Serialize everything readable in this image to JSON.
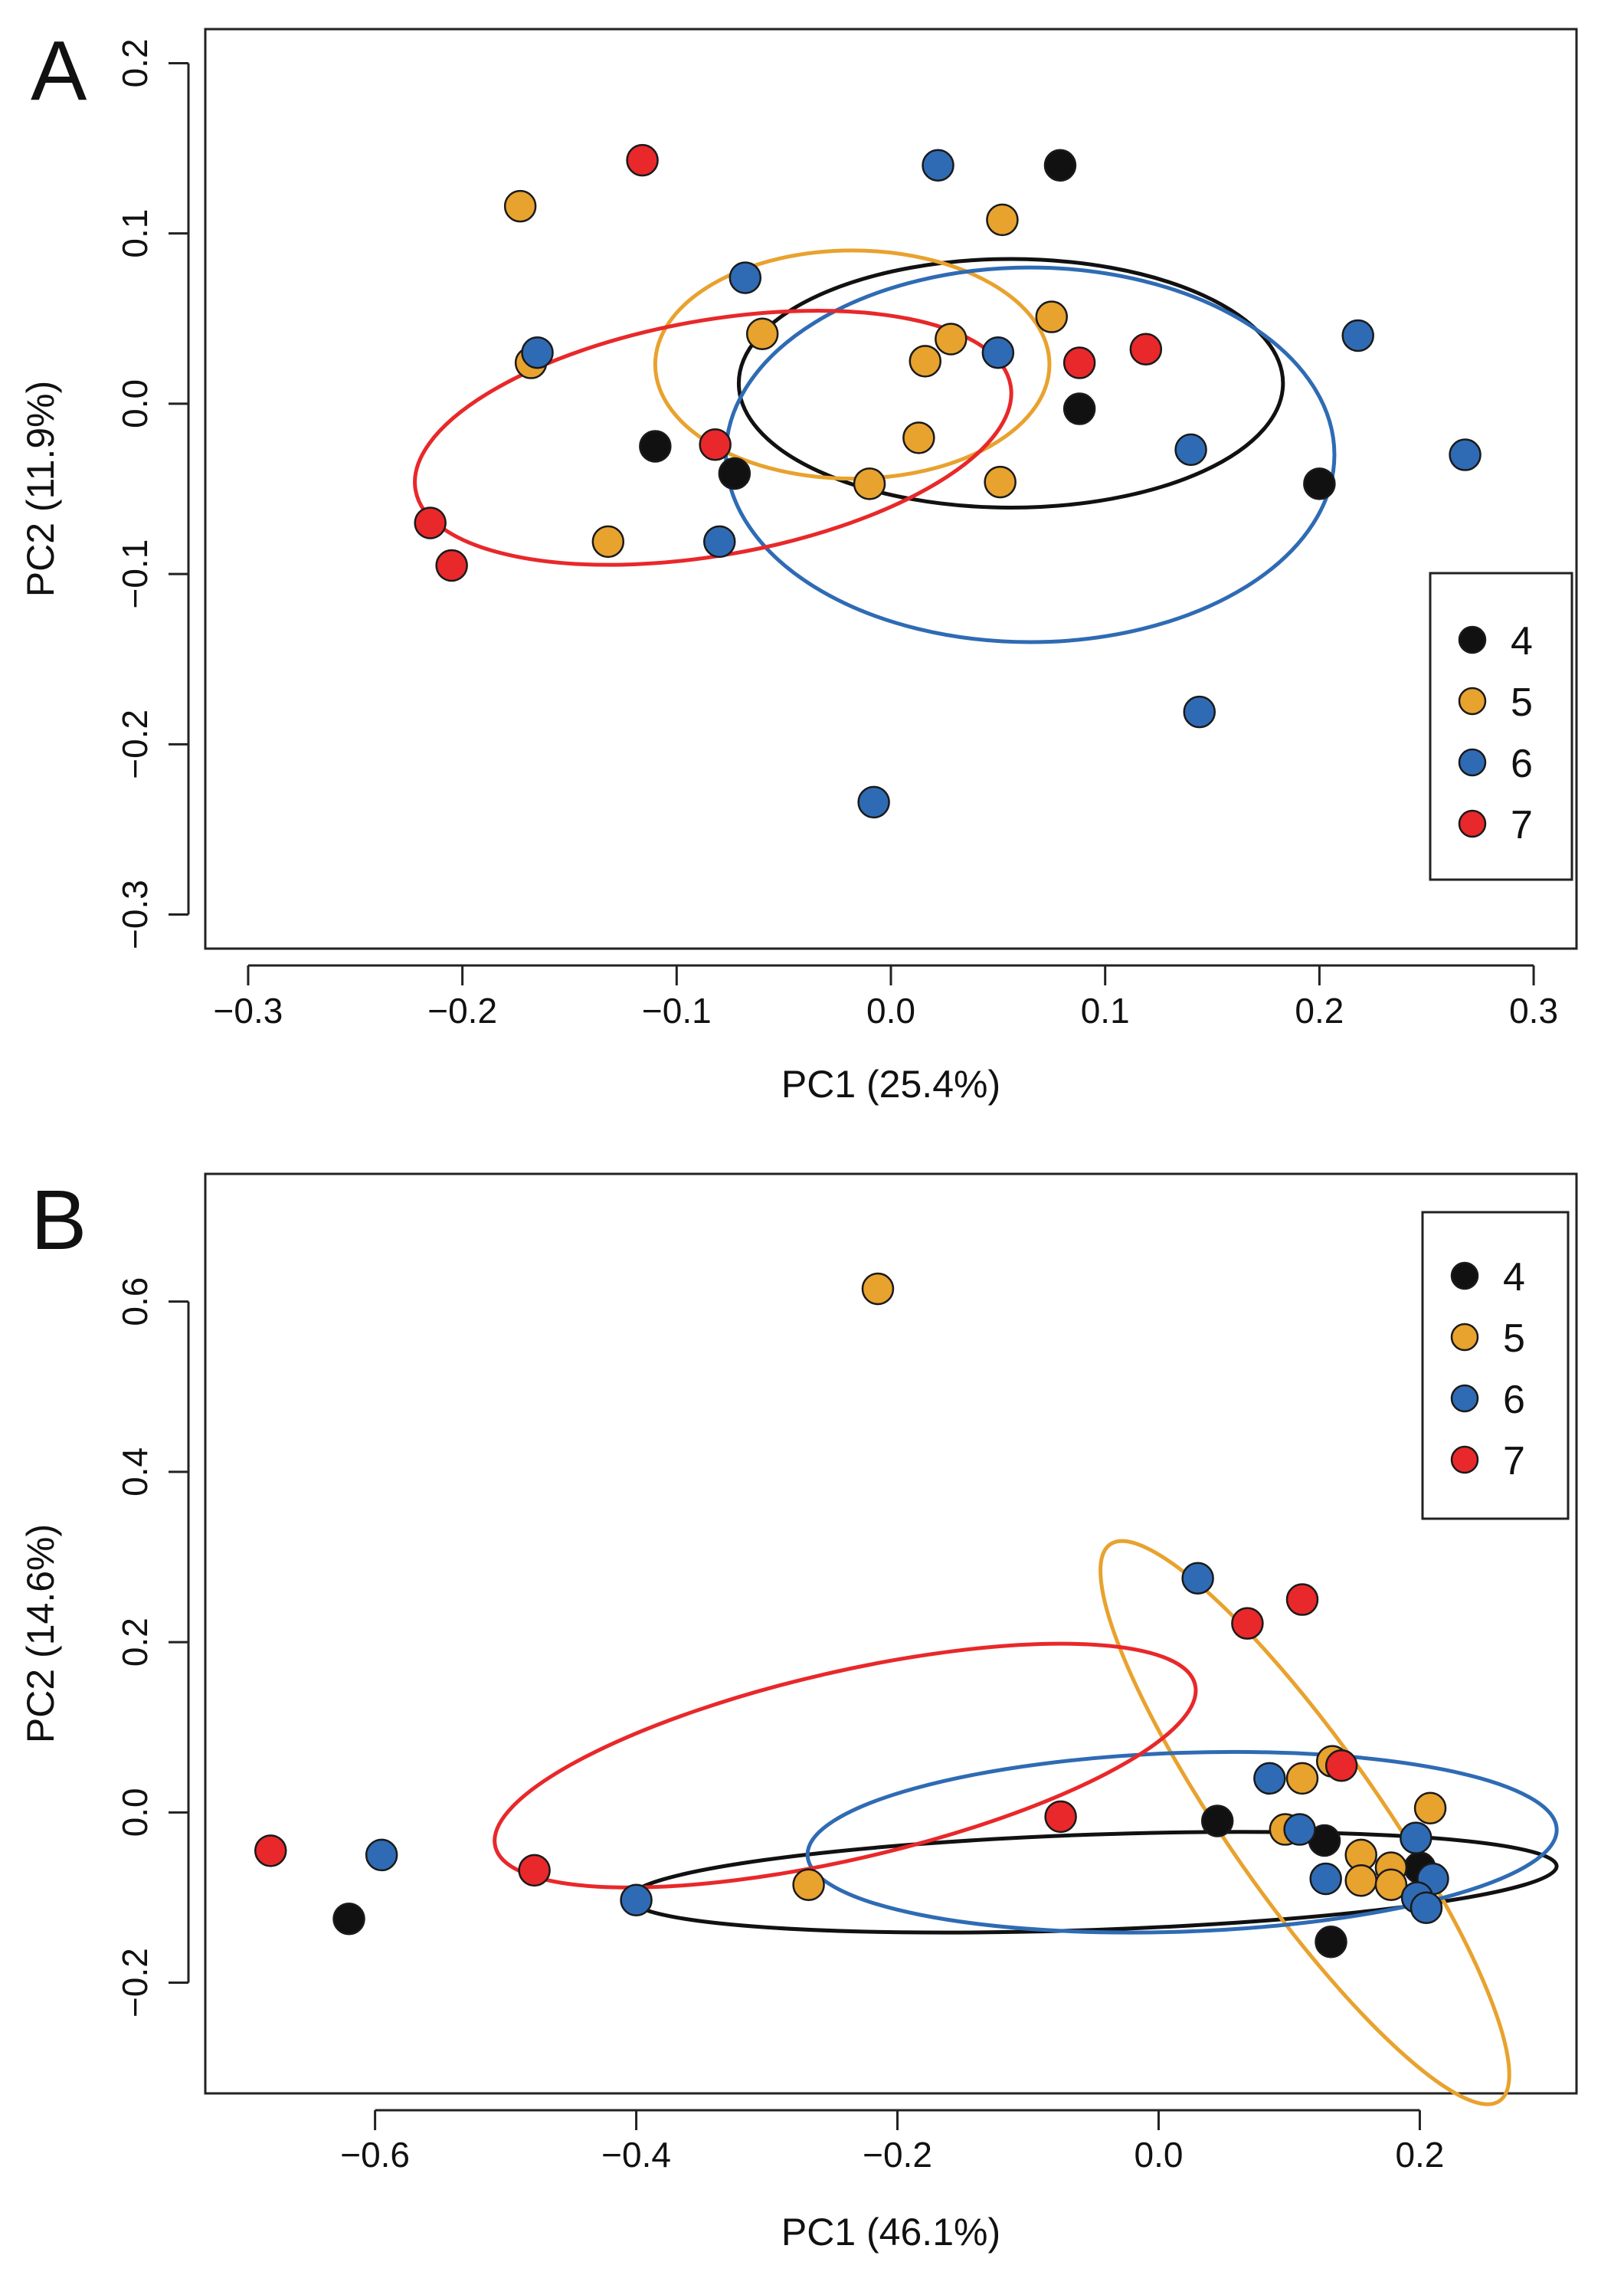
{
  "chart_data": [
    {
      "panel": "A",
      "type": "scatter",
      "xlabel": "PC1 (25.4%)",
      "ylabel": "PC2 (11.9%)",
      "xlim": [
        -0.32,
        0.32
      ],
      "ylim": [
        -0.32,
        0.22
      ],
      "xticks": [
        -0.3,
        -0.2,
        -0.1,
        0.0,
        0.1,
        0.2,
        0.3
      ],
      "yticks": [
        -0.3,
        -0.2,
        -0.1,
        0.0,
        0.1,
        0.2
      ],
      "xtick_labels": [
        "−0.3",
        "−0.2",
        "−0.1",
        "0.0",
        "0.1",
        "0.2",
        "0.3"
      ],
      "ytick_labels": [
        "−0.3",
        "−0.2",
        "−0.1",
        "0.0",
        "0.1",
        "0.2"
      ],
      "legend_position": "right",
      "series": [
        {
          "name": "4",
          "color": "#111111",
          "points": [
            [
              0.079,
              0.14
            ],
            [
              -0.11,
              -0.025
            ],
            [
              -0.073,
              -0.041
            ],
            [
              0.088,
              -0.003
            ],
            [
              0.2,
              -0.047
            ]
          ],
          "ellipse": {
            "cx": 0.056,
            "cy": 0.012,
            "rx": 0.127,
            "ry": 0.073,
            "angle_deg": 0
          }
        },
        {
          "name": "5",
          "color": "#E8A22E",
          "points": [
            [
              -0.173,
              0.116
            ],
            [
              0.052,
              0.108
            ],
            [
              -0.06,
              0.041
            ],
            [
              0.028,
              0.038
            ],
            [
              0.016,
              0.025
            ],
            [
              0.075,
              0.051
            ],
            [
              -0.168,
              0.024
            ],
            [
              0.013,
              -0.02
            ],
            [
              -0.01,
              -0.047
            ],
            [
              0.051,
              -0.046
            ],
            [
              -0.132,
              -0.081
            ]
          ],
          "ellipse": {
            "cx": -0.018,
            "cy": 0.023,
            "rx": 0.092,
            "ry": 0.067,
            "angle_deg": 0
          }
        },
        {
          "name": "6",
          "color": "#2F6BB4",
          "points": [
            [
              0.022,
              0.14
            ],
            [
              -0.068,
              0.074
            ],
            [
              -0.165,
              0.03
            ],
            [
              0.05,
              0.03
            ],
            [
              0.218,
              0.04
            ],
            [
              0.14,
              -0.027
            ],
            [
              0.268,
              -0.03
            ],
            [
              -0.08,
              -0.081
            ],
            [
              0.144,
              -0.181
            ],
            [
              -0.008,
              -0.234
            ]
          ],
          "ellipse": {
            "cx": 0.065,
            "cy": -0.03,
            "rx": 0.142,
            "ry": 0.11,
            "angle_deg": 0
          }
        },
        {
          "name": "7",
          "color": "#E8282A",
          "points": [
            [
              -0.116,
              0.143
            ],
            [
              0.088,
              0.024
            ],
            [
              0.119,
              0.032
            ],
            [
              -0.082,
              -0.024
            ],
            [
              -0.215,
              -0.07
            ],
            [
              -0.205,
              -0.095
            ]
          ],
          "ellipse": {
            "cx": -0.083,
            "cy": -0.02,
            "rx": 0.141,
            "ry": 0.069,
            "angle_deg": -10
          }
        }
      ],
      "legend": {
        "labels": [
          "4",
          "5",
          "6",
          "7"
        ]
      }
    },
    {
      "panel": "B",
      "type": "scatter",
      "xlabel": "PC1 (46.1%)",
      "ylabel": "PC2 (14.6%)",
      "xlim": [
        -0.73,
        0.32
      ],
      "ylim": [
        -0.33,
        0.75
      ],
      "xticks": [
        -0.6,
        -0.4,
        -0.2,
        0.0,
        0.2
      ],
      "yticks": [
        -0.2,
        0.0,
        0.2,
        0.4,
        0.6
      ],
      "xtick_labels": [
        "−0.6",
        "−0.4",
        "−0.2",
        "0.0",
        "0.2"
      ],
      "ytick_labels": [
        "−0.2",
        "0.0",
        "0.2",
        "0.4",
        "0.6"
      ],
      "legend_position": "top-right",
      "series": [
        {
          "name": "4",
          "color": "#111111",
          "points": [
            [
              -0.62,
              -0.125
            ],
            [
              0.045,
              -0.01
            ],
            [
              0.127,
              -0.033
            ],
            [
              0.2,
              -0.065
            ],
            [
              0.132,
              -0.152
            ]
          ],
          "ellipse": {
            "cx": -0.05,
            "cy": -0.082,
            "rx": 0.355,
            "ry": 0.056,
            "angle_deg": -2
          }
        },
        {
          "name": "5",
          "color": "#E8A22E",
          "points": [
            [
              -0.215,
              0.615
            ],
            [
              -0.268,
              -0.085
            ],
            [
              0.133,
              0.06
            ],
            [
              0.11,
              0.04
            ],
            [
              0.097,
              -0.02
            ],
            [
              0.155,
              -0.05
            ],
            [
              0.178,
              -0.065
            ],
            [
              0.208,
              0.005
            ],
            [
              0.155,
              -0.08
            ],
            [
              0.178,
              -0.085
            ]
          ],
          "ellipse": {
            "cx": 0.112,
            "cy": -0.012,
            "rx": 0.26,
            "ry": 0.089,
            "angle_deg": 55
          }
        },
        {
          "name": "6",
          "color": "#2F6BB4",
          "points": [
            [
              0.03,
              0.275
            ],
            [
              0.085,
              0.04
            ],
            [
              0.108,
              -0.02
            ],
            [
              0.197,
              -0.03
            ],
            [
              0.128,
              -0.078
            ],
            [
              0.21,
              -0.078
            ],
            [
              0.198,
              -0.1
            ],
            [
              0.205,
              -0.112
            ],
            [
              -0.595,
              -0.05
            ],
            [
              -0.4,
              -0.103
            ]
          ],
          "ellipse": {
            "cx": 0.018,
            "cy": -0.035,
            "rx": 0.287,
            "ry": 0.105,
            "angle_deg": -2
          }
        },
        {
          "name": "7",
          "color": "#E8282A",
          "points": [
            [
              0.11,
              0.25
            ],
            [
              0.068,
              0.222
            ],
            [
              0.14,
              0.055
            ],
            [
              -0.075,
              -0.005
            ],
            [
              -0.68,
              -0.045
            ],
            [
              -0.478,
              -0.068
            ]
          ],
          "ellipse": {
            "cx": -0.24,
            "cy": 0.055,
            "rx": 0.275,
            "ry": 0.11,
            "angle_deg": -13
          }
        }
      ],
      "legend": {
        "labels": [
          "4",
          "5",
          "6",
          "7"
        ]
      }
    }
  ],
  "panel_labels": [
    "A",
    "B"
  ]
}
